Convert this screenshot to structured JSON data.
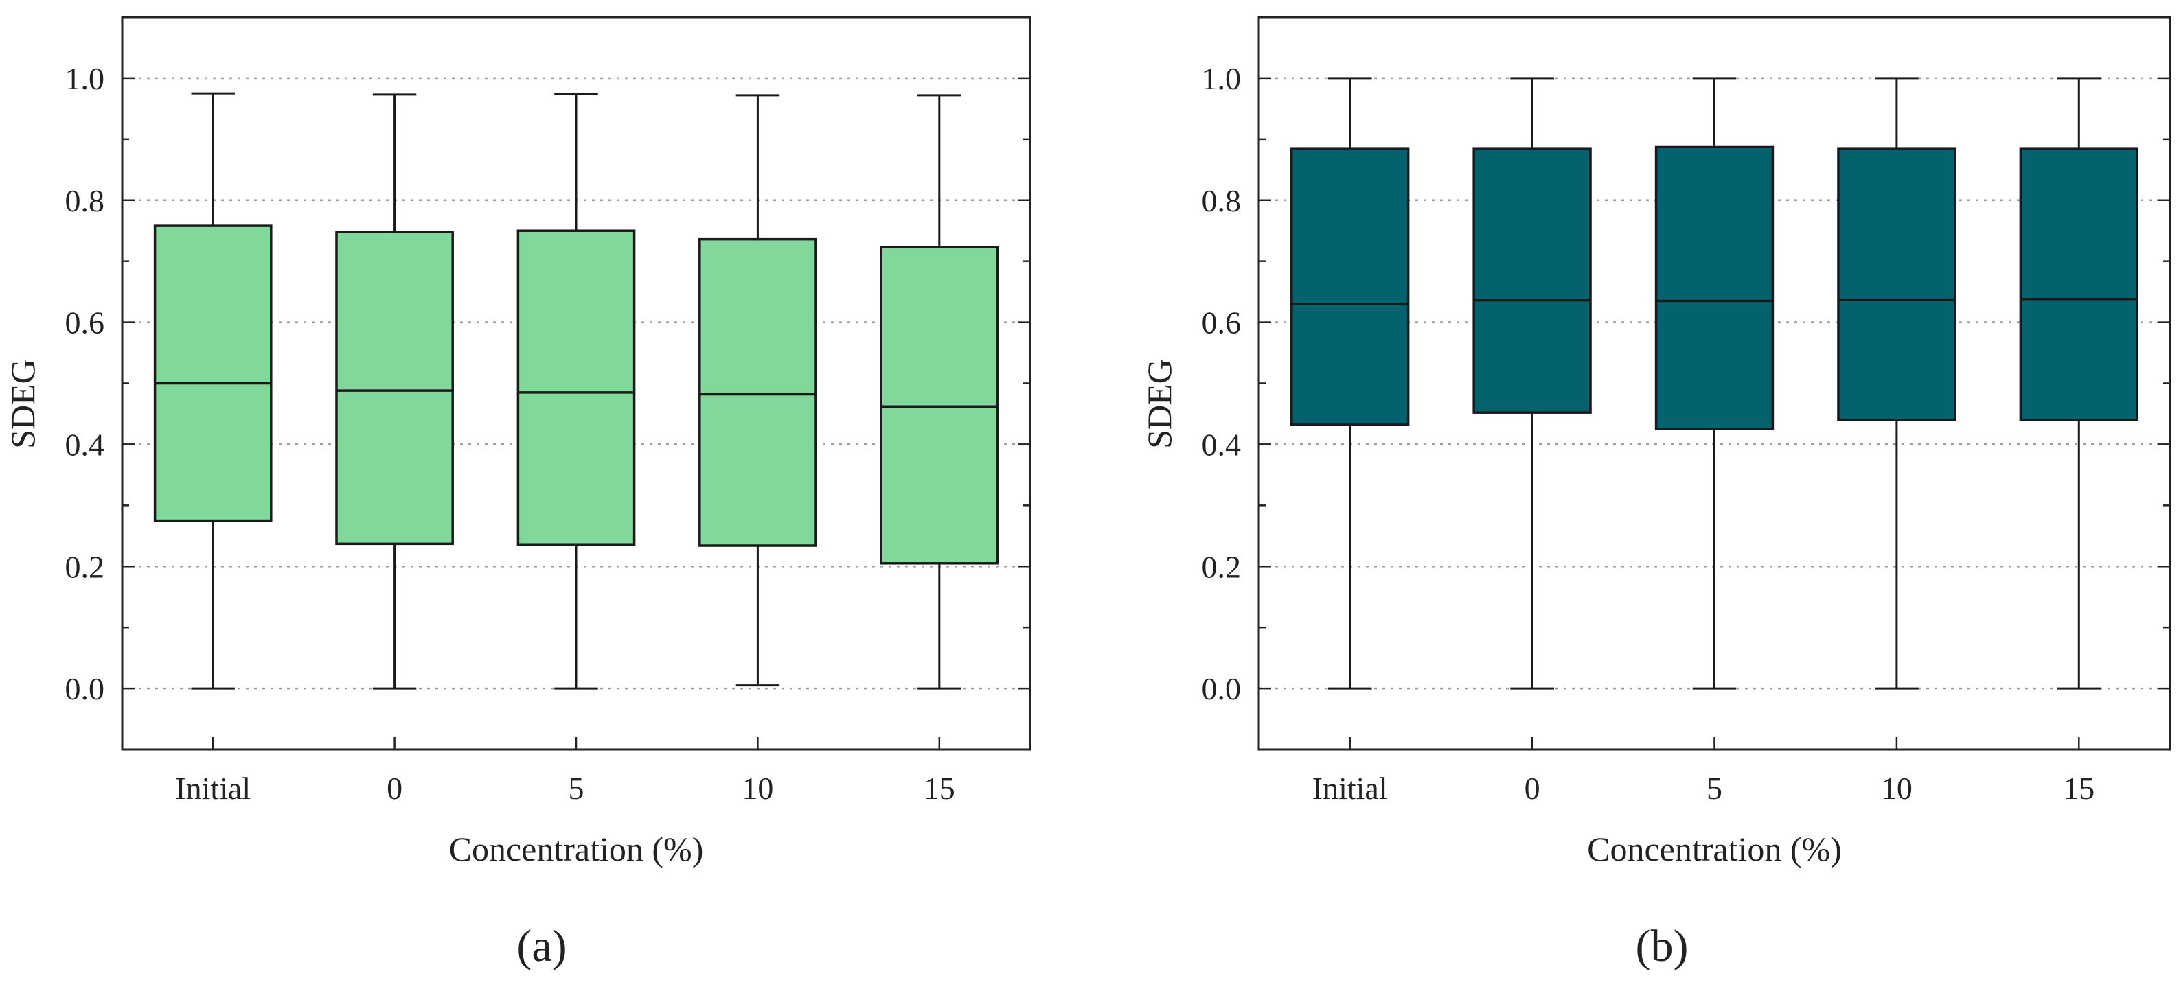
{
  "chart_data": [
    {
      "type": "box",
      "panel_label": "(a)",
      "title": "",
      "xlabel": "Concentration (%)",
      "ylabel": "SDEG",
      "ylim": [
        -0.1,
        1.1
      ],
      "yticks": [
        "0.0",
        "0.2",
        "0.4",
        "0.6",
        "0.8",
        "1.0"
      ],
      "grid": true,
      "box_color": "#80d99a",
      "categories": [
        "Initial",
        "0",
        "5",
        "10",
        "15"
      ],
      "boxes": [
        {
          "min": 0.0,
          "q1": 0.275,
          "median": 0.5,
          "q3": 0.758,
          "max": 0.975
        },
        {
          "min": 0.0,
          "q1": 0.237,
          "median": 0.488,
          "q3": 0.748,
          "max": 0.973
        },
        {
          "min": 0.0,
          "q1": 0.236,
          "median": 0.485,
          "q3": 0.75,
          "max": 0.974
        },
        {
          "min": 0.005,
          "q1": 0.234,
          "median": 0.482,
          "q3": 0.736,
          "max": 0.972
        },
        {
          "min": 0.0,
          "q1": 0.205,
          "median": 0.462,
          "q3": 0.723,
          "max": 0.972
        }
      ]
    },
    {
      "type": "box",
      "panel_label": "(b)",
      "title": "",
      "xlabel": "Concentration (%)",
      "ylabel": "SDEG",
      "ylim": [
        -0.1,
        1.1
      ],
      "yticks": [
        "0.0",
        "0.2",
        "0.4",
        "0.6",
        "0.8",
        "1.0"
      ],
      "grid": true,
      "box_color": "#04626e",
      "categories": [
        "Initial",
        "0",
        "5",
        "10",
        "15"
      ],
      "boxes": [
        {
          "min": 0.0,
          "q1": 0.432,
          "median": 0.63,
          "q3": 0.885,
          "max": 1.0
        },
        {
          "min": 0.0,
          "q1": 0.452,
          "median": 0.636,
          "q3": 0.885,
          "max": 1.0
        },
        {
          "min": 0.0,
          "q1": 0.425,
          "median": 0.635,
          "q3": 0.888,
          "max": 1.0
        },
        {
          "min": 0.0,
          "q1": 0.44,
          "median": 0.637,
          "q3": 0.885,
          "max": 1.0
        },
        {
          "min": 0.0,
          "q1": 0.44,
          "median": 0.638,
          "q3": 0.885,
          "max": 1.0
        }
      ]
    }
  ]
}
